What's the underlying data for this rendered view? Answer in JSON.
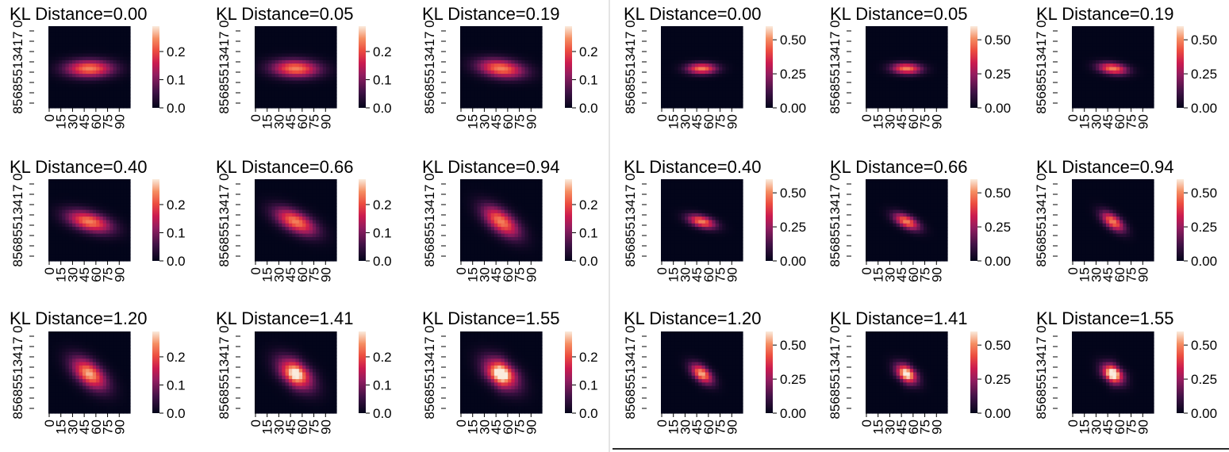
{
  "chart_data": [
    {
      "panel": "left",
      "type": "heatmap",
      "xticks": [
        "0",
        "15",
        "30",
        "45",
        "60",
        "75",
        "90"
      ],
      "ytick_text": "85685513417 0",
      "colorbar": {
        "range": [
          0,
          0.29
        ],
        "ticks": [
          "0.0",
          "0.1",
          "0.2"
        ]
      },
      "colormap": "rocket",
      "subplots": [
        {
          "title": "KL Distance=0.00",
          "kl": 0.0
        },
        {
          "title": "KL Distance=0.05",
          "kl": 0.05
        },
        {
          "title": "KL Distance=0.19",
          "kl": 0.19
        },
        {
          "title": "KL Distance=0.40",
          "kl": 0.4
        },
        {
          "title": "KL Distance=0.66",
          "kl": 0.66
        },
        {
          "title": "KL Distance=0.94",
          "kl": 0.94
        },
        {
          "title": "KL Distance=1.20",
          "kl": 1.2
        },
        {
          "title": "KL Distance=1.41",
          "kl": 1.41
        },
        {
          "title": "KL Distance=1.55",
          "kl": 1.55
        }
      ]
    },
    {
      "panel": "right",
      "type": "heatmap",
      "xticks": [
        "0",
        "15",
        "30",
        "45",
        "60",
        "75",
        "90"
      ],
      "ytick_text": "85685513417 0",
      "colorbar": {
        "range": [
          0,
          0.6
        ],
        "ticks": [
          "0.00",
          "0.25",
          "0.50"
        ]
      },
      "colormap": "rocket",
      "subplots": [
        {
          "title": "KL Distance=0.00",
          "kl": 0.0
        },
        {
          "title": "KL Distance=0.05",
          "kl": 0.05
        },
        {
          "title": "KL Distance=0.19",
          "kl": 0.19
        },
        {
          "title": "KL Distance=0.40",
          "kl": 0.4
        },
        {
          "title": "KL Distance=0.66",
          "kl": 0.66
        },
        {
          "title": "KL Distance=0.94",
          "kl": 0.94
        },
        {
          "title": "KL Distance=1.20",
          "kl": 1.2
        },
        {
          "title": "KL Distance=1.41",
          "kl": 1.41
        },
        {
          "title": "KL Distance=1.55",
          "kl": 1.55
        }
      ]
    }
  ]
}
